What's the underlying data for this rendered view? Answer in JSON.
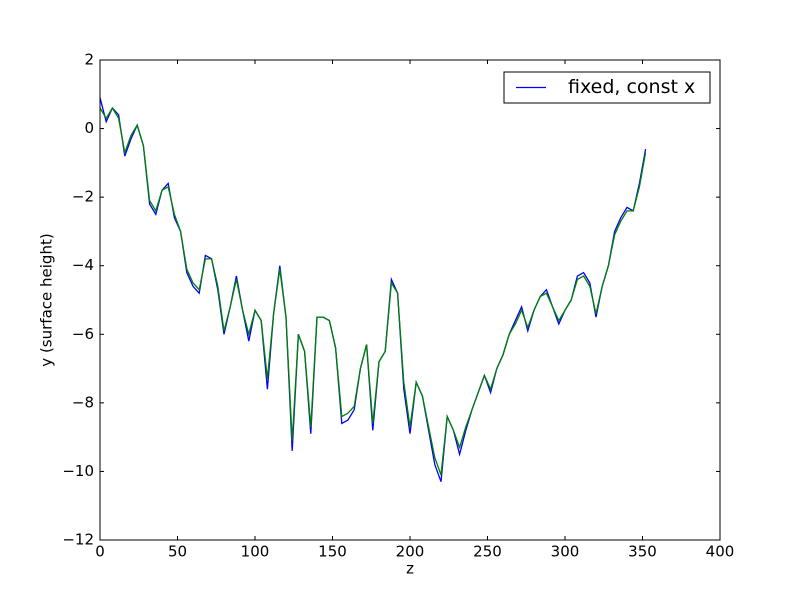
{
  "chart_data": {
    "type": "line",
    "xlabel": "z",
    "ylabel": "y (surface height)",
    "x": [
      0,
      4,
      8,
      12,
      16,
      20,
      24,
      28,
      32,
      36,
      40,
      44,
      48,
      52,
      56,
      60,
      64,
      68,
      72,
      76,
      80,
      84,
      88,
      92,
      96,
      100,
      104,
      108,
      112,
      116,
      120,
      124,
      128,
      132,
      136,
      140,
      144,
      148,
      152,
      156,
      160,
      164,
      168,
      172,
      176,
      180,
      184,
      188,
      192,
      196,
      200,
      204,
      208,
      212,
      216,
      220,
      224,
      228,
      232,
      236,
      240,
      244,
      248,
      252,
      256,
      260,
      264,
      268,
      272,
      276,
      280,
      284,
      288,
      292,
      296,
      300,
      304,
      308,
      312,
      316,
      320,
      324,
      328,
      332,
      336,
      340,
      344,
      348,
      352
    ],
    "series": [
      {
        "name": "fixed, const x",
        "color": "#0000ff",
        "values": [
          0.9,
          0.2,
          0.6,
          0.4,
          -0.8,
          -0.3,
          0.1,
          -0.5,
          -2.2,
          -2.5,
          -1.8,
          -1.6,
          -2.6,
          -3.0,
          -4.2,
          -4.6,
          -4.8,
          -3.7,
          -3.8,
          -4.7,
          -6.0,
          -5.2,
          -4.3,
          -5.3,
          -6.2,
          -5.3,
          -5.6,
          -7.6,
          -5.4,
          -4.0,
          -5.5,
          -9.4,
          -6.0,
          -6.5,
          -8.9,
          -5.5,
          -5.5,
          -5.6,
          -6.4,
          -8.6,
          -8.5,
          -8.2,
          -7.0,
          -6.3,
          -8.8,
          -6.8,
          -6.5,
          -4.4,
          -4.8,
          -7.6,
          -8.9,
          -7.4,
          -7.8,
          -8.8,
          -9.8,
          -10.3,
          -8.4,
          -8.8,
          -9.5,
          -8.8,
          -8.2,
          -7.7,
          -7.2,
          -7.7,
          -7.0,
          -6.6,
          -6.0,
          -5.6,
          -5.2,
          -5.9,
          -5.3,
          -4.9,
          -4.7,
          -5.2,
          -5.7,
          -5.3,
          -5.0,
          -4.3,
          -4.2,
          -4.5,
          -5.5,
          -4.6,
          -4.0,
          -3.0,
          -2.6,
          -2.3,
          -2.4,
          -1.6,
          -0.6
        ]
      },
      {
        "color": "#008000",
        "values": [
          0.6,
          0.3,
          0.6,
          0.3,
          -0.7,
          -0.2,
          0.1,
          -0.5,
          -2.1,
          -2.4,
          -1.8,
          -1.7,
          -2.5,
          -3.0,
          -4.1,
          -4.5,
          -4.7,
          -3.8,
          -3.8,
          -4.6,
          -5.9,
          -5.2,
          -4.4,
          -5.3,
          -6.0,
          -5.3,
          -5.6,
          -7.3,
          -5.4,
          -4.1,
          -5.5,
          -9.1,
          -6.0,
          -6.5,
          -8.7,
          -5.5,
          -5.5,
          -5.6,
          -6.4,
          -8.4,
          -8.3,
          -8.1,
          -7.0,
          -6.3,
          -8.6,
          -6.8,
          -6.5,
          -4.5,
          -4.8,
          -7.4,
          -8.7,
          -7.4,
          -7.8,
          -8.7,
          -9.6,
          -10.1,
          -8.4,
          -8.8,
          -9.3,
          -8.7,
          -8.2,
          -7.7,
          -7.2,
          -7.6,
          -7.0,
          -6.6,
          -6.0,
          -5.7,
          -5.3,
          -5.8,
          -5.3,
          -4.9,
          -4.8,
          -5.2,
          -5.6,
          -5.3,
          -5.0,
          -4.4,
          -4.3,
          -4.6,
          -5.4,
          -4.6,
          -4.0,
          -3.1,
          -2.7,
          -2.4,
          -2.4,
          -1.7,
          -0.7
        ]
      }
    ],
    "xlim": [
      0,
      400
    ],
    "xticks": [
      0,
      50,
      100,
      150,
      200,
      250,
      300,
      350,
      400
    ],
    "ylim": [
      -12,
      2
    ],
    "yticks": [
      {
        "value": -12,
        "label": "−12"
      },
      {
        "value": -10,
        "label": "−10"
      },
      {
        "value": -8,
        "label": "−8"
      },
      {
        "value": -6,
        "label": "−6"
      },
      {
        "value": -4,
        "label": "−4"
      },
      {
        "value": -2,
        "label": "−2"
      },
      0,
      2
    ],
    "legend": "upper right"
  }
}
